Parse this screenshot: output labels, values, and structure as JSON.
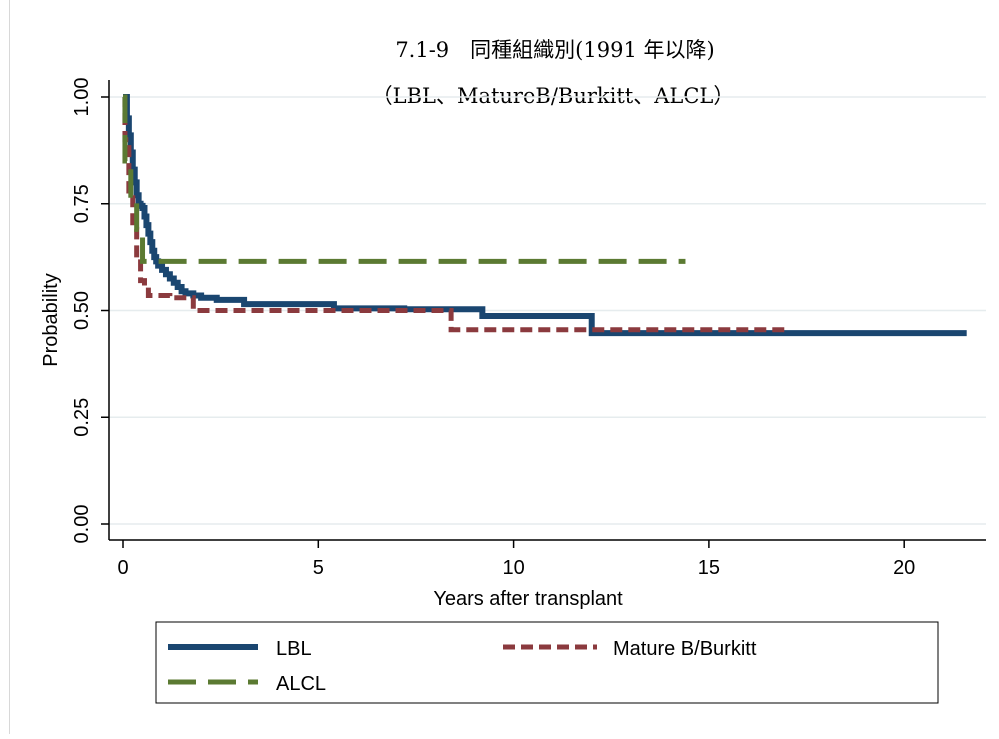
{
  "chart_data": {
    "type": "line",
    "step": true,
    "title": "7.1-9　同種組織別(1991 年以降)",
    "subtitle": "（LBL、MatureB/Burkitt、ALCL）",
    "xlabel": "Years after transplant",
    "ylabel": "Probability",
    "xlim": [
      0,
      22
    ],
    "ylim": [
      0,
      1
    ],
    "xticks": [
      0,
      5,
      10,
      15,
      20
    ],
    "yticks": [
      0,
      0.25,
      0.5,
      0.75,
      1
    ],
    "xtick_labels": [
      "0",
      "5",
      "10",
      "15",
      "20"
    ],
    "ytick_labels": [
      "0.00",
      "0.25",
      "0.50",
      "0.75",
      "1.00"
    ],
    "grid": true,
    "legend_position": "bottom",
    "series": [
      {
        "name": "LBL",
        "color": "#1a4670",
        "dash": "solid",
        "x": [
          0,
          0.1,
          0.15,
          0.2,
          0.25,
          0.3,
          0.35,
          0.4,
          0.45,
          0.5,
          0.55,
          0.6,
          0.65,
          0.7,
          0.75,
          0.8,
          0.85,
          0.9,
          1.0,
          1.1,
          1.2,
          1.3,
          1.4,
          1.5,
          1.6,
          1.8,
          2.0,
          2.4,
          3.1,
          5.4,
          7.2,
          9.2,
          12.0,
          21.6
        ],
        "y": [
          1.0,
          0.95,
          0.91,
          0.87,
          0.83,
          0.8,
          0.77,
          0.75,
          0.745,
          0.74,
          0.72,
          0.7,
          0.68,
          0.66,
          0.64,
          0.625,
          0.615,
          0.605,
          0.595,
          0.585,
          0.575,
          0.565,
          0.555,
          0.545,
          0.54,
          0.535,
          0.53,
          0.525,
          0.515,
          0.505,
          0.503,
          0.487,
          0.447,
          0.447
        ]
      },
      {
        "name": "Mature B/Burkitt",
        "color": "#8b3a3e",
        "dash": "short-dash",
        "x": [
          0,
          0.05,
          0.15,
          0.25,
          0.35,
          0.45,
          0.55,
          0.65,
          1.2,
          1.8,
          4.0,
          8.4,
          12.0,
          17.0
        ],
        "y": [
          1.0,
          0.9,
          0.78,
          0.69,
          0.62,
          0.57,
          0.555,
          0.535,
          0.53,
          0.5,
          0.5,
          0.455,
          0.455,
          0.455
        ]
      },
      {
        "name": "ALCL",
        "color": "#5b7a32",
        "dash": "long-dash",
        "x": [
          0,
          0.05,
          0.2,
          0.35,
          0.5,
          14.4
        ],
        "y": [
          1.0,
          0.85,
          0.77,
          0.69,
          0.615,
          0.615
        ]
      }
    ]
  }
}
